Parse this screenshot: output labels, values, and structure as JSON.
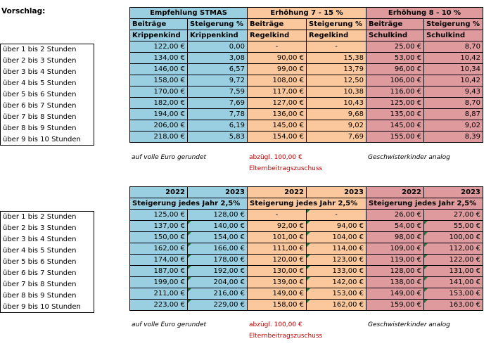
{
  "title": "Vorschlag:",
  "hours": [
    "über 1 bis 2 Stunden",
    "über 2 bis 3 Stunden",
    "über 3 bis 4 Stunden",
    "über 4 bis 5 Stunden",
    "über 5 bis 6 Stunden",
    "über 6 bis 7 Stunden",
    "über 7 bis 8 Stunden",
    "über 8 bis 9 Stunden",
    "über 9 bis 10 Stunden"
  ],
  "top": {
    "groups": [
      "Empfehlung STMAS",
      "Erhöhung 7 - 15 %",
      "Erhöhung 8 - 10 %"
    ],
    "head1": [
      "Beiträge",
      "Steigerung %",
      "Beiträge",
      "Steigerung %",
      "Beiträge",
      "Steigerung %"
    ],
    "head2": [
      "Krippenkind",
      "Krippenkind",
      "Regelkind",
      "Regelkind",
      "Schulkind",
      "Schulkind"
    ],
    "rows": [
      [
        "122,00 €",
        "0,00",
        "-",
        "-",
        "25,00 €",
        "8,70"
      ],
      [
        "134,00 €",
        "3,08",
        "90,00 €",
        "15,38",
        "53,00 €",
        "10,42"
      ],
      [
        "146,00 €",
        "6,57",
        "99,00 €",
        "13,79",
        "96,00 €",
        "10,34"
      ],
      [
        "158,00 €",
        "9,72",
        "108,00 €",
        "12,50",
        "106,00 €",
        "10,42"
      ],
      [
        "170,00 €",
        "7,59",
        "117,00 €",
        "10,38",
        "116,00 €",
        "9,43"
      ],
      [
        "182,00 €",
        "7,69",
        "127,00 €",
        "10,43",
        "125,00 €",
        "8,70"
      ],
      [
        "194,00 €",
        "7,78",
        "136,00 €",
        "9,68",
        "135,00 €",
        "8,87"
      ],
      [
        "206,00 €",
        "6,19",
        "145,00 €",
        "9,02",
        "145,00 €",
        "9,02"
      ],
      [
        "218,00 €",
        "5,83",
        "154,00 €",
        "7,69",
        "155,00 €",
        "8,39"
      ]
    ]
  },
  "bottom": {
    "years": [
      "2022",
      "2023",
      "2022",
      "2023",
      "2022",
      "2023"
    ],
    "groups": [
      "Steigerung jedes Jahr 2,5%",
      "Steigerung jedes Jahr 2,5%",
      "Steigerung jedes Jahr 2,5%"
    ],
    "rows": [
      [
        "125,00 €",
        "128,00 €",
        "-",
        "-",
        "26,00 €",
        "27,00 €"
      ],
      [
        "137,00 €",
        "140,00 €",
        "92,00 €",
        "94,00 €",
        "54,00 €",
        "55,00 €"
      ],
      [
        "150,00 €",
        "154,00 €",
        "101,00 €",
        "104,00 €",
        "98,00 €",
        "100,00 €"
      ],
      [
        "162,00 €",
        "166,00 €",
        "111,00 €",
        "114,00 €",
        "109,00 €",
        "112,00 €"
      ],
      [
        "174,00 €",
        "178,00 €",
        "120,00 €",
        "123,00 €",
        "119,00 €",
        "122,00 €"
      ],
      [
        "187,00 €",
        "192,00 €",
        "130,00 €",
        "133,00 €",
        "128,00 €",
        "131,00 €"
      ],
      [
        "199,00 €",
        "204,00 €",
        "139,00 €",
        "142,00 €",
        "138,00 €",
        "141,00 €"
      ],
      [
        "211,00 €",
        "216,00 €",
        "149,00 €",
        "153,00 €",
        "149,00 €",
        "153,00 €"
      ],
      [
        "223,00 €",
        "229,00 €",
        "158,00 €",
        "162,00 €",
        "159,00 €",
        "163,00 €"
      ]
    ]
  },
  "notes": {
    "rounded": "auf volle Euro gerundet",
    "deduct_line1": "abzügl. 100,00 €",
    "deduct_line2": "Elternbeitragszuschuss",
    "siblings": "Geschwisterkinder analog"
  },
  "colors": {
    "blue": "#99cfe0",
    "orange": "#fbc89d",
    "red": "#de9a9c",
    "marker": "#1e7a3a"
  }
}
